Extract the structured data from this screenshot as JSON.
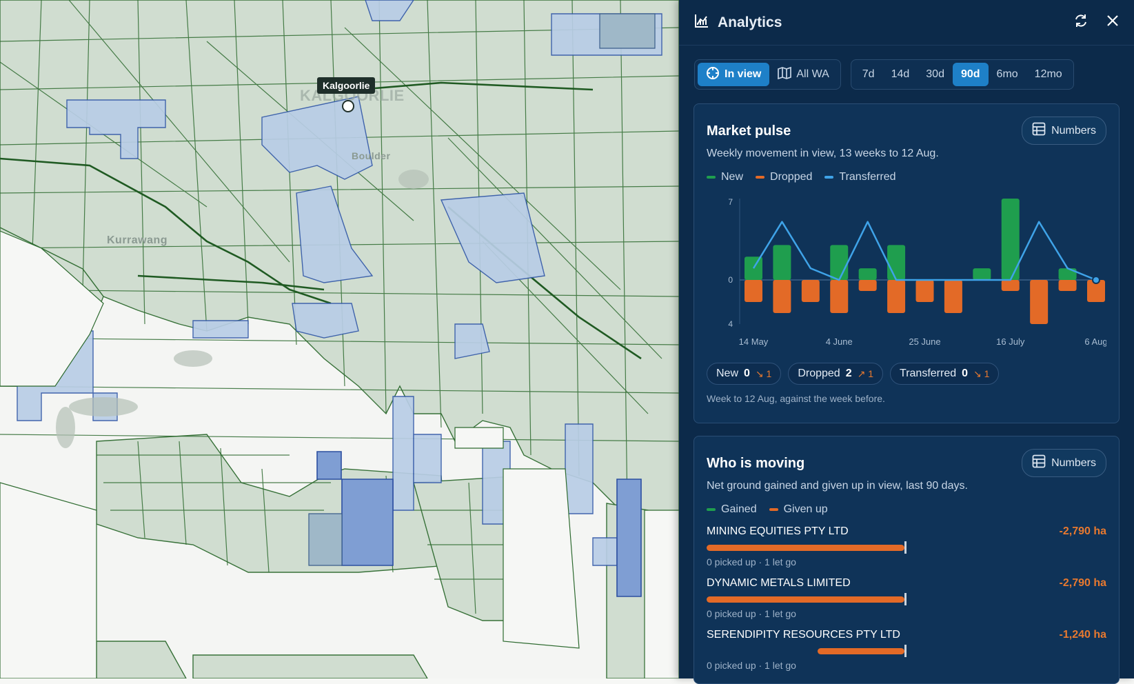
{
  "map": {
    "labels": {
      "town": "Kalgoorlie",
      "suburb": "Kurrawang",
      "faint_town": "KALGOORLIE",
      "faint_suburb": "Boulder"
    }
  },
  "panel": {
    "title": "Analytics",
    "scope": {
      "in_view": "In view",
      "all_wa": "All WA"
    },
    "ranges": [
      "7d",
      "14d",
      "30d",
      "90d",
      "6mo",
      "12mo"
    ],
    "active_range": "90d",
    "market_pulse": {
      "title": "Market pulse",
      "subtitle": "Weekly movement in view, 13 weeks to 12 Aug.",
      "numbers_label": "Numbers",
      "legend": [
        "New",
        "Dropped",
        "Transferred"
      ],
      "colors": {
        "new": "#1f9e4e",
        "dropped": "#e36a27",
        "transferred": "#3fa3e8"
      },
      "chart_data": {
        "type": "bar",
        "y_ticks": [
          "7",
          "0",
          "4"
        ],
        "x_tick_labels": [
          "14 May",
          "4 June",
          "25 June",
          "16 July",
          "6 Aug"
        ],
        "x_tick_positions": [
          0,
          3,
          6,
          9,
          12
        ],
        "ylim": [
          -4,
          7
        ],
        "weeks": 13,
        "series": [
          {
            "name": "New",
            "values": [
              2,
              3,
              0,
              3,
              1,
              3,
              0,
              0,
              1,
              7,
              0,
              1,
              0
            ]
          },
          {
            "name": "Dropped",
            "values": [
              2,
              3,
              2,
              3,
              1,
              3,
              2,
              3,
              0,
              1,
              4,
              1,
              2
            ]
          },
          {
            "name": "Transferred",
            "values": [
              1,
              5,
              1,
              0,
              5,
              0,
              0,
              0,
              0,
              0,
              5,
              1,
              0
            ]
          }
        ]
      },
      "pills": [
        {
          "label": "New",
          "value": "0",
          "delta": "↘ 1"
        },
        {
          "label": "Dropped",
          "value": "2",
          "delta": "↗ 1"
        },
        {
          "label": "Transferred",
          "value": "0",
          "delta": "↘ 1"
        }
      ],
      "footnote": "Week to 12 Aug, against the week before."
    },
    "who_is_moving": {
      "title": "Who is moving",
      "subtitle": "Net ground gained and given up in view, last 90 days.",
      "numbers_label": "Numbers",
      "legend": [
        "Gained",
        "Given up"
      ],
      "movers": [
        {
          "name": "MINING EQUITIES PTY LTD",
          "value": "-2,790 ha",
          "share": 1.0,
          "meta": "0 picked up · 1 let go"
        },
        {
          "name": "DYNAMIC METALS LIMITED",
          "value": "-2,790 ha",
          "share": 1.0,
          "meta": "0 picked up · 1 let go"
        },
        {
          "name": "SERENDIPITY RESOURCES PTY LTD",
          "value": "-1,240 ha",
          "share": 0.44,
          "meta": "0 picked up · 1 let go"
        }
      ]
    }
  }
}
